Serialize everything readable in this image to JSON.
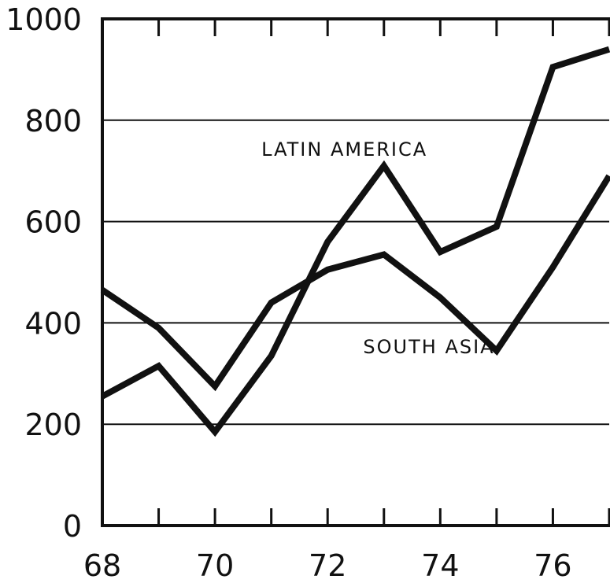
{
  "chart_data": {
    "type": "line",
    "title": "",
    "xlabel": "",
    "ylabel": "",
    "x": [
      68,
      69,
      70,
      71,
      72,
      73,
      74,
      75,
      76,
      77
    ],
    "xlim": [
      68,
      77
    ],
    "ylim": [
      0,
      1000
    ],
    "x_ticks": [
      68,
      69,
      70,
      71,
      72,
      73,
      74,
      75,
      76,
      77
    ],
    "x_tick_labels": [
      "68",
      "70",
      "72",
      "74",
      "76"
    ],
    "x_tick_label_values": [
      68,
      70,
      72,
      74,
      76
    ],
    "y_ticks": [
      0,
      200,
      400,
      600,
      800,
      1000
    ],
    "y_tick_labels": [
      "0",
      "200",
      "400",
      "600",
      "800",
      "1000"
    ],
    "grid": "horizontal",
    "series": [
      {
        "name": "LATIN AMERICA",
        "values": [
          465,
          390,
          275,
          440,
          505,
          535,
          450,
          345,
          510,
          690
        ]
      },
      {
        "name": "SOUTH ASIA",
        "values": [
          255,
          315,
          185,
          335,
          560,
          710,
          540,
          590,
          905,
          940
        ]
      }
    ],
    "annotations": [
      {
        "text": "LATIN AMERICA",
        "x": 72.3,
        "y": 730
      },
      {
        "text": "SOUTH ASIA",
        "x": 73.8,
        "y": 340
      }
    ],
    "colors": {
      "line": "#111111",
      "grid": "#111111",
      "background": "#ffffff"
    }
  }
}
